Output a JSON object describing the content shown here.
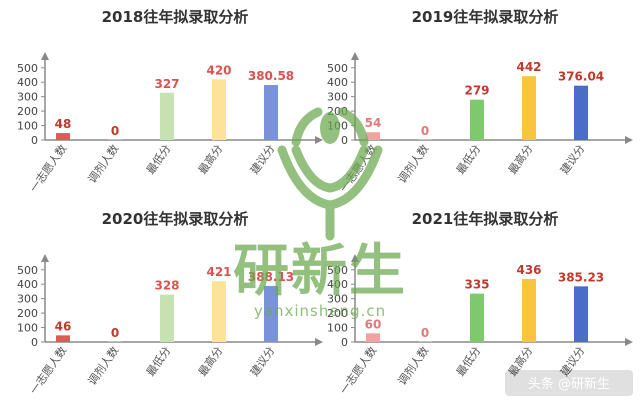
{
  "chart_data": [
    {
      "type": "bar",
      "title": "2018往年拟录取分析",
      "categories": [
        "一志愿人数",
        "调剂人数",
        "最低分",
        "最高分",
        "建议分"
      ],
      "values": [
        48,
        0,
        327,
        420,
        380.58
      ],
      "value_labels": [
        "48",
        "0",
        "327",
        "420",
        "380.58"
      ],
      "bar_colors": [
        "#e05a57",
        "#c0c0c0",
        "#c6e2b0",
        "#fde39a",
        "#7a93d8"
      ],
      "label_colors": [
        "#c0392b",
        "#c0392b",
        "#d9534f",
        "#d9534f",
        "#d9534f"
      ],
      "yticks": [
        0,
        100,
        200,
        300,
        400,
        500
      ],
      "ylim": [
        0,
        540
      ],
      "grid": false
    },
    {
      "type": "bar",
      "title": "2019往年拟录取分析",
      "categories": [
        "一志愿人数",
        "调剂人数",
        "最低分",
        "最高分",
        "建议分"
      ],
      "values": [
        54,
        0,
        279,
        442,
        376.04
      ],
      "value_labels": [
        "54",
        "0",
        "279",
        "442",
        "376.04"
      ],
      "bar_colors": [
        "#f2a3a1",
        "#c0c0c0",
        "#7ec86e",
        "#fbc43d",
        "#4a6dc8"
      ],
      "label_colors": [
        "#e07a78",
        "#e07a78",
        "#c0392b",
        "#c0392b",
        "#c0392b"
      ],
      "yticks": [
        0,
        100,
        200,
        300,
        400,
        500
      ],
      "ylim": [
        0,
        540
      ],
      "grid": false
    },
    {
      "type": "bar",
      "title": "2020往年拟录取分析",
      "categories": [
        "一志愿人数",
        "调剂人数",
        "最低分",
        "最高分",
        "建议分"
      ],
      "values": [
        46,
        0,
        328,
        421,
        388.13
      ],
      "value_labels": [
        "46",
        "0",
        "328",
        "421",
        "388.13"
      ],
      "bar_colors": [
        "#e05a57",
        "#c0c0c0",
        "#c6e2b0",
        "#fde39a",
        "#7a93d8"
      ],
      "label_colors": [
        "#c0392b",
        "#c0392b",
        "#d9534f",
        "#d9534f",
        "#d9534f"
      ],
      "yticks": [
        0,
        100,
        200,
        300,
        400,
        500
      ],
      "ylim": [
        0,
        540
      ],
      "grid": false
    },
    {
      "type": "bar",
      "title": "2021往年拟录取分析",
      "categories": [
        "一志愿人数",
        "调剂人数",
        "最低分",
        "最高分",
        "建议分"
      ],
      "values": [
        60,
        0,
        335,
        436,
        385.23
      ],
      "value_labels": [
        "60",
        "0",
        "335",
        "436",
        "385.23"
      ],
      "bar_colors": [
        "#f2a3a1",
        "#c0c0c0",
        "#7ec86e",
        "#fbc43d",
        "#4a6dc8"
      ],
      "label_colors": [
        "#e07a78",
        "#e07a78",
        "#c0392b",
        "#c0392b",
        "#c0392b"
      ],
      "yticks": [
        0,
        100,
        200,
        300,
        400,
        500
      ],
      "ylim": [
        0,
        540
      ],
      "grid": false
    }
  ],
  "watermark": {
    "text": "研新生",
    "sub": "yanxinsheng.cn",
    "color": "#6aa84f"
  },
  "footer": {
    "text": "头条 @研新生"
  }
}
